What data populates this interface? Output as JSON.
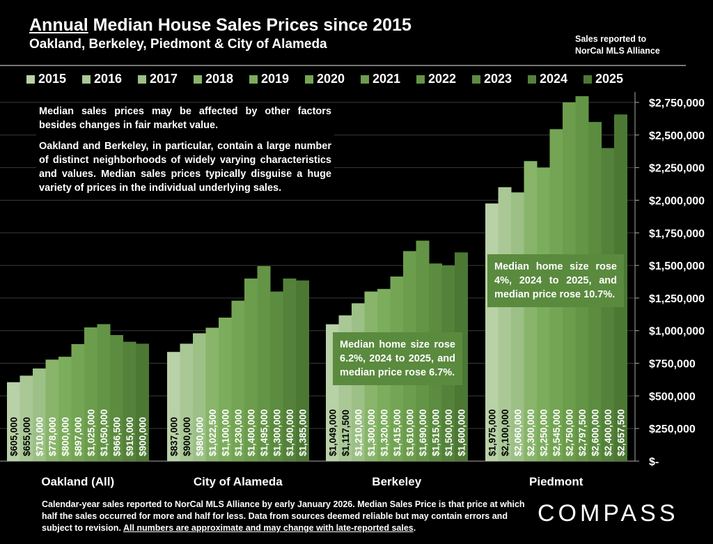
{
  "header": {
    "title_underlined": "Annual",
    "title_rest": " Median House Sales Prices since 2015",
    "subtitle": "Oakland, Berkeley, Piedmont & City of Alameda",
    "source_line1": "Sales reported to",
    "source_line2": "NorCal MLS Alliance"
  },
  "notes": {
    "main_p1": "Median sales prices may be affected by other factors besides changes in fair market value.",
    "main_p2": "Oakland and Berkeley, in particular, contain a large number of distinct neighborhoods of widely varying characteristics and values. Median sales prices typically disguise a huge variety of prices in the individual underlying sales.",
    "berkeley": "Median home size rose 6.2%, 2024 to 2025, and median price rose 6.7%.",
    "piedmont": "Median home size rose 4%, 2024 to 2025, and median price rose 10.7%."
  },
  "footer": {
    "text": "Calendar-year sales reported to NorCal MLS Alliance by early January 2026. Median Sales Price is that price at which half the sales occurred for more and half for less. Data from sources deemed reliable but may contain errors and subject to revision. ",
    "underlined": "All numbers are approximate and may change with late-reported sales",
    "end": "."
  },
  "logo": "COMPASS",
  "chart_data": {
    "type": "bar",
    "title": "Annual Median House Sales Prices since 2015",
    "categories": [
      "Oakland (All)",
      "City of Alameda",
      "Berkeley",
      "Piedmont"
    ],
    "ylim": [
      0,
      2750000
    ],
    "yticks": [
      0,
      250000,
      500000,
      750000,
      1000000,
      1250000,
      1500000,
      1750000,
      2000000,
      2250000,
      2500000,
      2750000
    ],
    "ytick_labels": [
      "$-",
      "$250,000",
      "$500,000",
      "$750,000",
      "$1,000,000",
      "$1,250,000",
      "$1,500,000",
      "$1,750,000",
      "$2,000,000",
      "$2,250,000",
      "$2,500,000",
      "$2,750,000"
    ],
    "legend_position": "top",
    "grid": true,
    "series": [
      {
        "name": "2015",
        "color": "#b9d1a6",
        "values": [
          605000,
          837000,
          1049000,
          1975000
        ]
      },
      {
        "name": "2016",
        "color": "#a9c896",
        "values": [
          655000,
          900000,
          1117500,
          2100000
        ]
      },
      {
        "name": "2017",
        "color": "#9cc086",
        "values": [
          710000,
          980000,
          1210000,
          2060000
        ]
      },
      {
        "name": "2018",
        "color": "#88b56a",
        "values": [
          778000,
          1022500,
          1300000,
          2300000
        ]
      },
      {
        "name": "2019",
        "color": "#7cad5c",
        "values": [
          800000,
          1100000,
          1320000,
          2250000
        ]
      },
      {
        "name": "2020",
        "color": "#74a554",
        "values": [
          897000,
          1230000,
          1415000,
          2545000
        ]
      },
      {
        "name": "2021",
        "color": "#6c9d4c",
        "values": [
          1025000,
          1400000,
          1610000,
          2750000
        ]
      },
      {
        "name": "2022",
        "color": "#649546",
        "values": [
          1050000,
          1495000,
          1690000,
          2797500
        ]
      },
      {
        "name": "2023",
        "color": "#5c8c40",
        "values": [
          966500,
          1300000,
          1515000,
          2600000
        ]
      },
      {
        "name": "2024",
        "color": "#54823a",
        "values": [
          915000,
          1400000,
          1500000,
          2400000
        ]
      },
      {
        "name": "2025",
        "color": "#4c7834",
        "values": [
          900000,
          1385000,
          1600000,
          2657500
        ]
      }
    ],
    "data_labels": [
      [
        "$605,000",
        "$655,000",
        "$710,000",
        "$778,000",
        "$800,000",
        "$897,000",
        "$1,025,000",
        "$1,050,000",
        "$966,500",
        "$915,000",
        "$900,000"
      ],
      [
        "$837,000",
        "$900,000",
        "$980,000",
        "$1,022,500",
        "$1,100,000",
        "$1,230,000",
        "$1,400,000",
        "$1,495,000",
        "$1,300,000",
        "$1,400,000",
        "$1,385,000"
      ],
      [
        "$1,049,000",
        "$1,117,500",
        "$1,210,000",
        "$1,300,000",
        "$1,320,000",
        "$1,415,000",
        "$1,610,000",
        "$1,690,000",
        "$1,515,000",
        "$1,500,000",
        "$1,600,000"
      ],
      [
        "$1,975,000",
        "$2,100,000",
        "$2,060,000",
        "$2,300,000",
        "$2,250,000",
        "$2,545,000",
        "$2,750,000",
        "$2,797,500",
        "$2,600,000",
        "$2,400,000",
        "$2,657,500"
      ]
    ]
  }
}
